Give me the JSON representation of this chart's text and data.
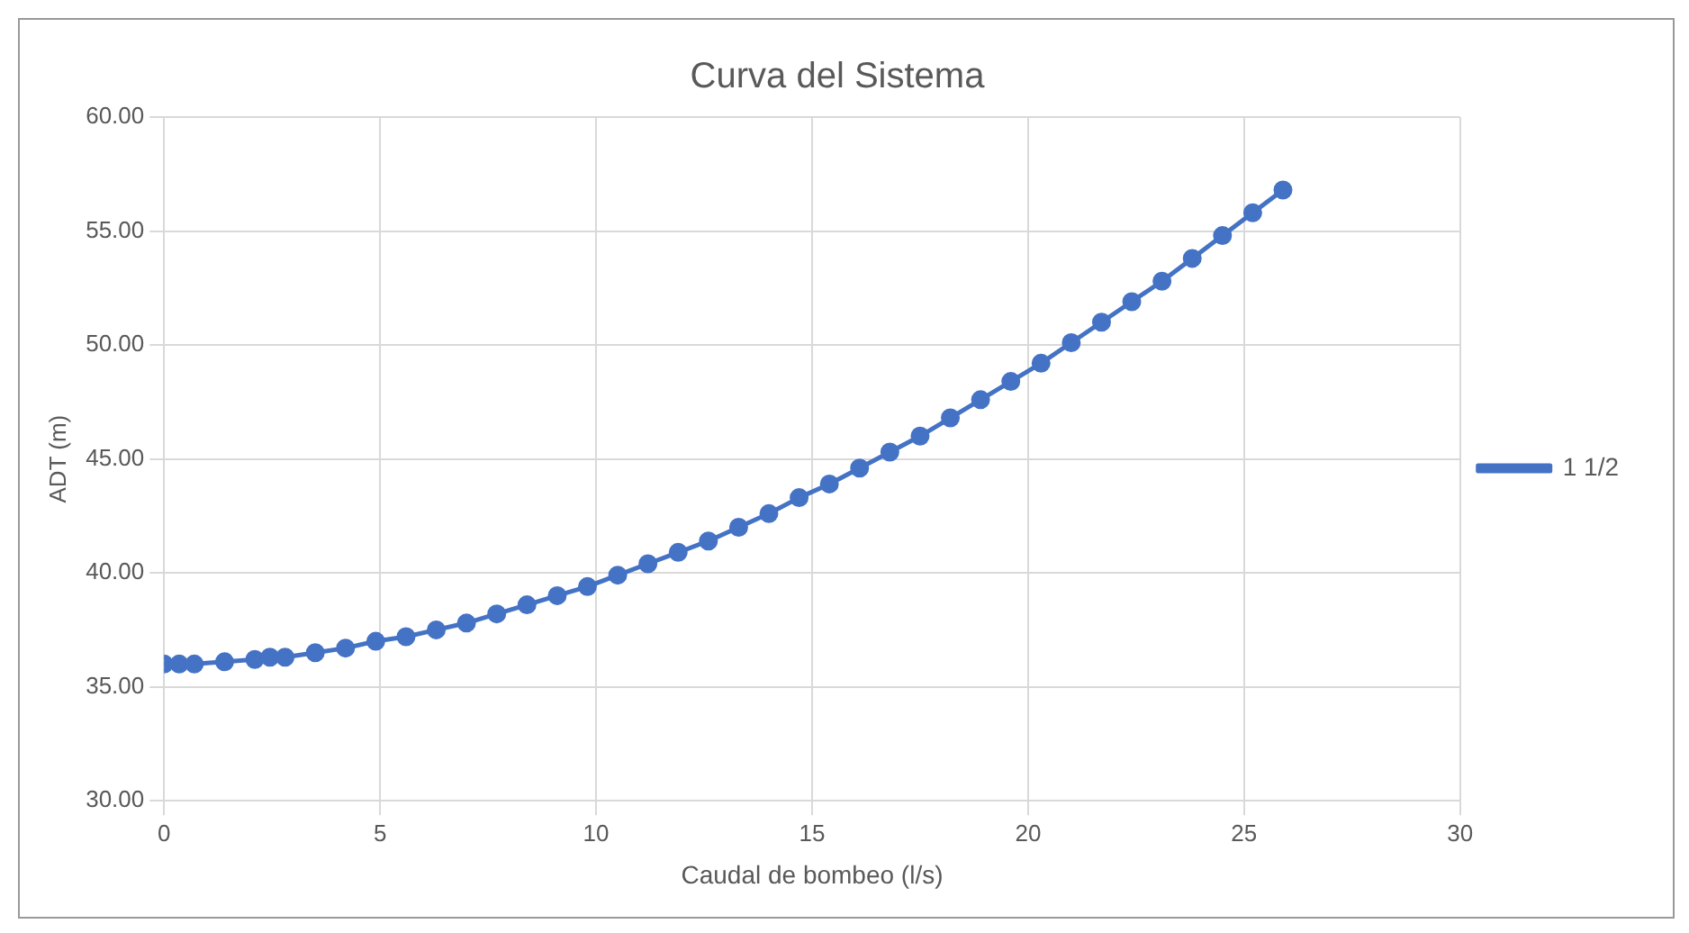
{
  "chart_data": {
    "type": "line",
    "title": "Curva del Sistema",
    "xlabel": "Caudal de bombeo (l/s)",
    "ylabel": "ADT (m)",
    "x": [
      0,
      0.35,
      0.7,
      1.4,
      2.1,
      2.45,
      2.8,
      3.5,
      4.2,
      4.9,
      5.6,
      6.3,
      7.0,
      7.7,
      8.4,
      9.1,
      9.8,
      10.5,
      11.2,
      11.9,
      12.6,
      13.3,
      14.0,
      14.7,
      15.4,
      16.1,
      16.8,
      17.5,
      18.2,
      18.9,
      19.6,
      20.3,
      21.0,
      21.7,
      22.4,
      23.1,
      23.8,
      24.5,
      25.2,
      25.9
    ],
    "series": [
      {
        "name": "1 1/2",
        "color": "#4472c4",
        "values": [
          36.0,
          36.0,
          36.0,
          36.1,
          36.2,
          36.3,
          36.3,
          36.5,
          36.7,
          37.0,
          37.2,
          37.5,
          37.8,
          38.2,
          38.6,
          39.0,
          39.4,
          39.9,
          40.4,
          40.9,
          41.4,
          42.0,
          42.6,
          43.3,
          43.9,
          44.6,
          45.3,
          46.0,
          46.8,
          47.6,
          48.4,
          49.2,
          50.1,
          51.0,
          51.9,
          52.8,
          53.8,
          54.8,
          55.8,
          56.8
        ]
      }
    ],
    "xlim": [
      0,
      30
    ],
    "xticks": [
      0,
      5,
      10,
      15,
      20,
      25,
      30
    ],
    "ylim": [
      30,
      60
    ],
    "yticks": [
      {
        "value": 30,
        "label": "30.00"
      },
      {
        "value": 35,
        "label": "35.00"
      },
      {
        "value": 40,
        "label": "40.00"
      },
      {
        "value": 45,
        "label": "45.00"
      },
      {
        "value": 50,
        "label": "50.00"
      },
      {
        "value": 55,
        "label": "55.00"
      },
      {
        "value": 60,
        "label": "60.00"
      }
    ],
    "grid": true,
    "legend": "right",
    "marker": "circle",
    "line_style": "solid"
  }
}
